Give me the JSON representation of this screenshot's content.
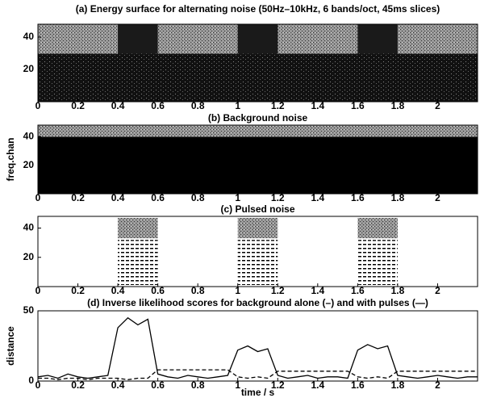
{
  "chart_data": [
    {
      "type": "spectrogram",
      "title": "(a) Energy surface for alternating noise (50Hz–10kHz, 6 bands/oct, 45ms slices)",
      "xlim": [
        0,
        2.2
      ],
      "xticks": [
        0,
        0.2,
        0.4,
        0.6,
        0.8,
        1,
        1.2,
        1.4,
        1.6,
        1.8,
        2
      ],
      "ylim": [
        0,
        48
      ],
      "yticks": [
        20,
        40
      ],
      "pulses": [
        [
          0.4,
          0.6
        ],
        [
          1.0,
          1.2
        ],
        [
          1.6,
          1.8
        ]
      ]
    },
    {
      "type": "spectrogram",
      "title": "(b) Background noise",
      "ylabel": "freq.chan",
      "xlim": [
        0,
        2.2
      ],
      "xticks": [
        0,
        0.2,
        0.4,
        0.6,
        0.8,
        1,
        1.2,
        1.4,
        1.6,
        1.8,
        2
      ],
      "ylim": [
        0,
        48
      ],
      "yticks": [
        20,
        40
      ]
    },
    {
      "type": "spectrogram",
      "title": "(c) Pulsed noise",
      "xlim": [
        0,
        2.2
      ],
      "xticks": [
        0,
        0.2,
        0.4,
        0.6,
        0.8,
        1,
        1.2,
        1.4,
        1.6,
        1.8,
        2
      ],
      "ylim": [
        0,
        48
      ],
      "yticks": [
        20,
        40
      ],
      "pulses": [
        [
          0.4,
          0.6
        ],
        [
          1.0,
          1.2
        ],
        [
          1.6,
          1.8
        ]
      ]
    },
    {
      "type": "line",
      "title": "(d) Inverse likelihood scores for background alone (–) and with pulses (—)",
      "xlabel": "time / s",
      "ylabel": "distance",
      "xlim": [
        0,
        2.2
      ],
      "xticks": [
        0,
        0.2,
        0.4,
        0.6,
        0.8,
        1,
        1.2,
        1.4,
        1.6,
        1.8,
        2
      ],
      "ylim": [
        0,
        50
      ],
      "yticks": [
        0,
        50
      ],
      "x": [
        0,
        0.05,
        0.1,
        0.15,
        0.2,
        0.25,
        0.3,
        0.35,
        0.4,
        0.45,
        0.5,
        0.55,
        0.6,
        0.65,
        0.7,
        0.75,
        0.8,
        0.85,
        0.9,
        0.95,
        1,
        1.05,
        1.1,
        1.15,
        1.2,
        1.25,
        1.3,
        1.35,
        1.4,
        1.45,
        1.5,
        1.55,
        1.6,
        1.65,
        1.7,
        1.75,
        1.8,
        1.85,
        1.9,
        1.95,
        2,
        2.05,
        2.1,
        2.15,
        2.2
      ],
      "series": [
        {
          "color": "#000000",
          "linestyle": "solid",
          "values": [
            3,
            4,
            2,
            5,
            3,
            2,
            3,
            4,
            38,
            45,
            40,
            44,
            5,
            3,
            2,
            4,
            3,
            2,
            3,
            4,
            22,
            25,
            21,
            23,
            4,
            2,
            3,
            4,
            2,
            3,
            3,
            2,
            22,
            26,
            23,
            25,
            4,
            3,
            2,
            3,
            4,
            3,
            2,
            3,
            3
          ]
        },
        {
          "color": "#000000",
          "linestyle": "dashed",
          "values": [
            2,
            2,
            1,
            2,
            2,
            1,
            2,
            2,
            2,
            1,
            2,
            2,
            8,
            8,
            8,
            8,
            8,
            8,
            8,
            8,
            3,
            2,
            3,
            2,
            7,
            7,
            7,
            7,
            7,
            7,
            7,
            7,
            3,
            2,
            3,
            2,
            7,
            7,
            7,
            7,
            7,
            7,
            7,
            7,
            7
          ]
        }
      ]
    }
  ]
}
